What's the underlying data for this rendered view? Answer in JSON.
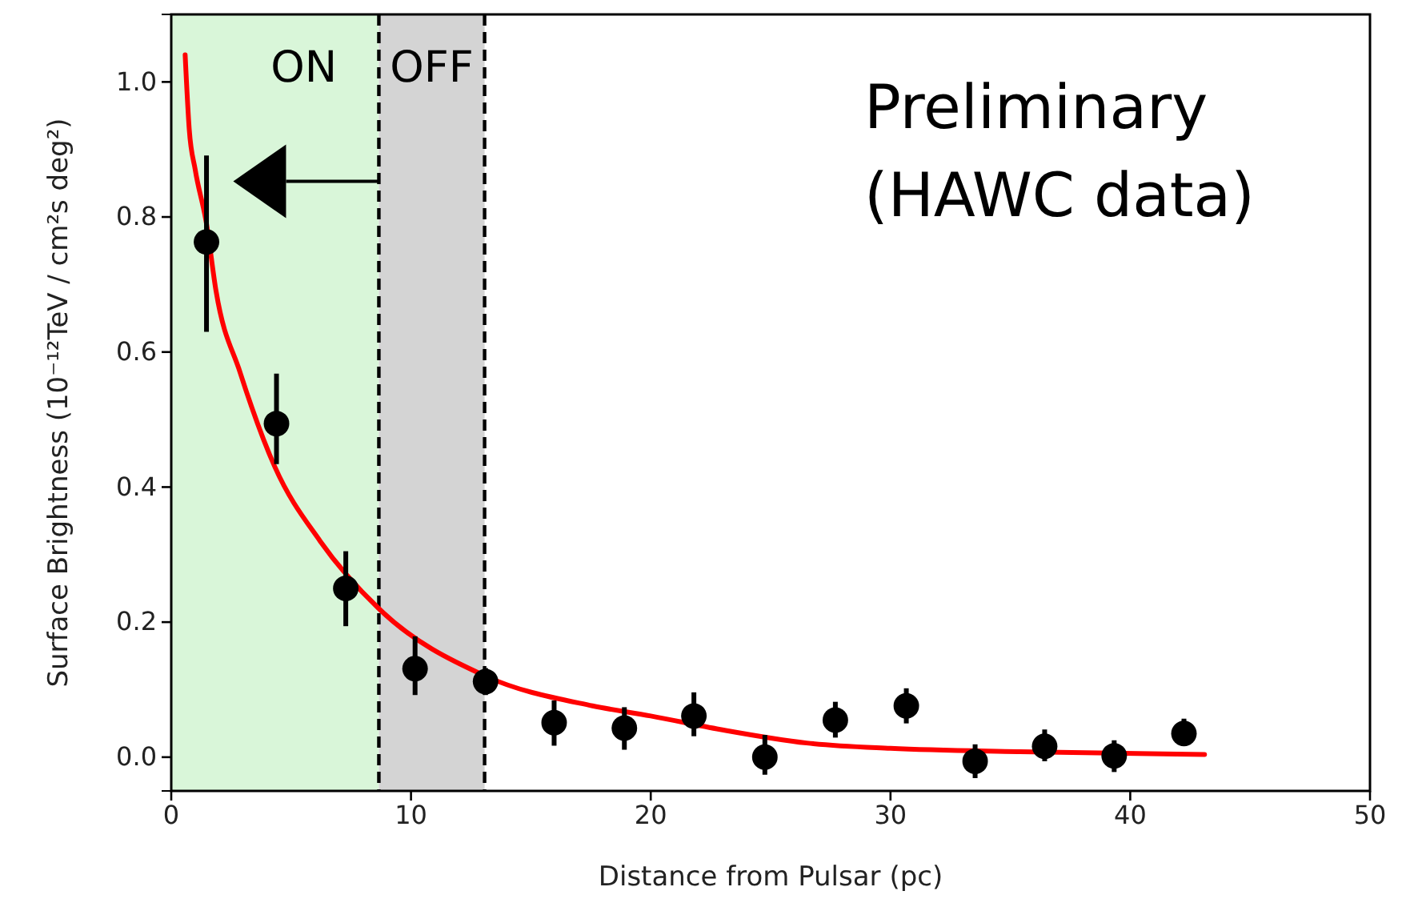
{
  "chart_data": {
    "type": "scatter",
    "xlabel": "Distance from Pulsar (pc)",
    "ylabel": "Surface Brightness (10⁻¹²TeV / cm²s deg²)",
    "xlim": [
      0,
      50
    ],
    "xticks": [
      0,
      10,
      20,
      30,
      40,
      50
    ],
    "ylim": [
      -0.05,
      1.1
    ],
    "yticks": [
      {
        "value": 0,
        "label": "0.0"
      },
      {
        "value": 0.2,
        "label": "0.2"
      },
      {
        "value": 0.4,
        "label": "0.4"
      },
      {
        "value": 0.6,
        "label": "0.6"
      },
      {
        "value": 0.8,
        "label": "0.8"
      },
      {
        "value": 1,
        "label": "1.0"
      }
    ],
    "bands": [
      {
        "axis": "x",
        "from": 0,
        "to": 8.66,
        "label": "ON",
        "color": "#d9f6d9"
      },
      {
        "axis": "x",
        "from": 8.66,
        "to": 13.07,
        "label": "OFF",
        "color": "#d4d4d4"
      }
    ],
    "ref_lines": [
      {
        "axis": "x",
        "value": 8.66,
        "line_style": "dashed",
        "color": "#000000"
      },
      {
        "axis": "x",
        "value": 13.07,
        "line_style": "dashed",
        "color": "#000000"
      }
    ],
    "annotations": [
      "Preliminary",
      "(HAWC data)"
    ],
    "marker": "circle",
    "grid": false,
    "series": [
      {
        "type": "line",
        "marker": "none",
        "color": "#ff0000",
        "x": [
          0.58,
          0.75,
          1.0,
          1.47,
          1.87,
          2.87,
          4.32,
          6.21,
          8.66,
          13.11,
          17.57,
          20.0,
          22.9,
          26.5,
          30.0,
          35.4,
          43.1
        ],
        "values": [
          1.04,
          0.93,
          0.87,
          0.79,
          0.69,
          0.57,
          0.43,
          0.32,
          0.22,
          0.12,
          0.076,
          0.061,
          0.041,
          0.021,
          0.013,
          0.008,
          0.004
        ]
      },
      {
        "color": "#000000",
        "x": [
          1.47,
          4.39,
          7.28,
          10.17,
          13.11,
          15.97,
          18.9,
          21.8,
          24.76,
          27.7,
          30.66,
          33.53,
          36.43,
          39.33,
          42.24
        ],
        "values": [
          0.763,
          0.494,
          0.25,
          0.131,
          0.112,
          0.051,
          0.043,
          0.061,
          0.0,
          0.055,
          0.076,
          -0.006,
          0.016,
          0.002,
          0.035
        ],
        "errors": [
          [
            0.63,
            0.891
          ],
          [
            0.434,
            0.568
          ],
          [
            0.194,
            0.305
          ],
          [
            0.092,
            0.179
          ],
          [
            0.092,
            0.132
          ],
          [
            0.017,
            0.084
          ],
          [
            0.011,
            0.074
          ],
          [
            0.031,
            0.096
          ],
          [
            -0.026,
            0.033
          ],
          [
            0.029,
            0.082
          ],
          [
            0.05,
            0.102
          ],
          [
            -0.031,
            0.019
          ],
          [
            -0.006,
            0.041
          ],
          [
            -0.022,
            0.025
          ],
          [
            0.017,
            0.057
          ]
        ]
      }
    ]
  }
}
